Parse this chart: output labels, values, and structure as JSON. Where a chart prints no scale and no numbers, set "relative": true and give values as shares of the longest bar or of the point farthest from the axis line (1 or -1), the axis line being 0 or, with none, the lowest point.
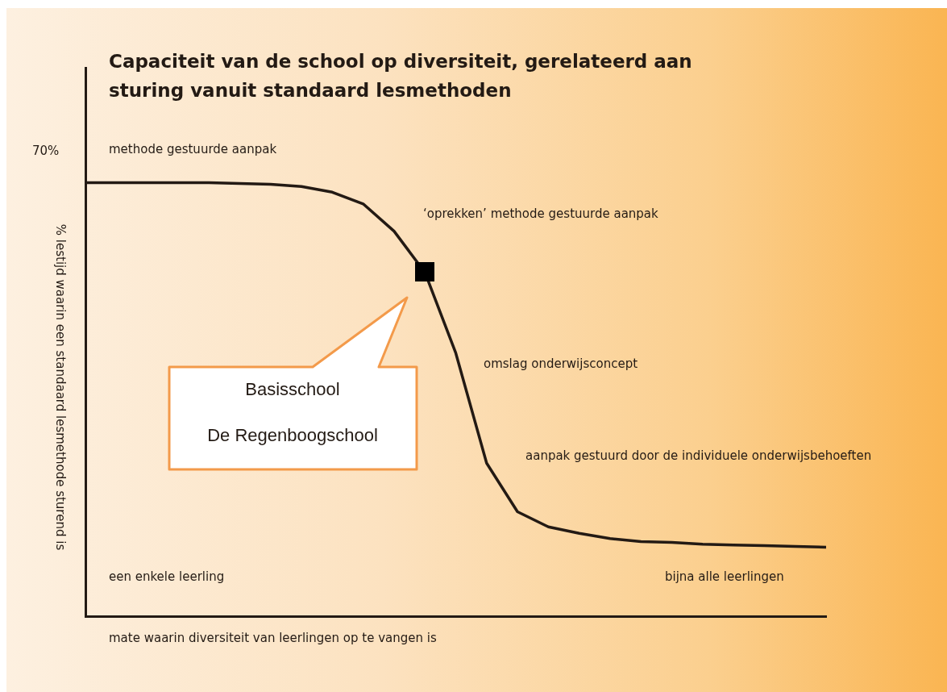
{
  "chart_data": {
    "type": "line",
    "title": "Capaciteit van de school op diversiteit, gerelateerd aan sturing vanuit standaard lesmethoden",
    "xlabel": "mate waarin diversiteit van leerlingen op te vangen is",
    "ylabel": "% lestijd waarin een standaard lesmethode sturend is",
    "relative": true,
    "grid": false,
    "legend": false,
    "categories": [
      null,
      null,
      null,
      null,
      null,
      null,
      null,
      null,
      null,
      null,
      null,
      null,
      null,
      null,
      null,
      null,
      null,
      null,
      null,
      null,
      null,
      null,
      null,
      null,
      null
    ],
    "series": [
      {
        "color": "#231a14",
        "marker": "none",
        "values": [
          1,
          1,
          1,
          1,
          1,
          0.998,
          0.996,
          0.991,
          0.978,
          0.951,
          0.888,
          0.793,
          0.607,
          0.353,
          0.241,
          0.206,
          0.191,
          0.179,
          0.172,
          0.17,
          0.166,
          0.164,
          0.163,
          0.161,
          0.159
        ]
      }
    ],
    "annotations": [
      "70%",
      "methode gestuurde aanpak",
      "‘oprekken’ methode gestuurde aanpak",
      "omslag onderwijsconcept",
      "aanpak gestuurd door de individuele onderwijsbehoeften",
      "een enkele leerling",
      "bijna alle leerlingen",
      "Basisschool",
      "De Regenboogschool"
    ]
  }
}
